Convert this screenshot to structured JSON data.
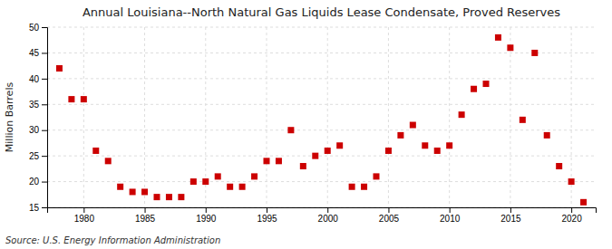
{
  "chart_data": {
    "type": "scatter",
    "title": "Annual Louisiana--North Natural Gas Liquids Lease Condensate, Proved Reserves",
    "ylabel": "Million Barrels",
    "source": "Source: U.S. Energy Information Administration",
    "x": [
      1978,
      1979,
      1980,
      1981,
      1982,
      1983,
      1984,
      1985,
      1986,
      1987,
      1988,
      1989,
      1990,
      1991,
      1992,
      1993,
      1994,
      1995,
      1996,
      1997,
      1998,
      1999,
      2000,
      2001,
      2002,
      2003,
      2004,
      2005,
      2006,
      2007,
      2008,
      2009,
      2010,
      2011,
      2012,
      2013,
      2014,
      2015,
      2016,
      2017,
      2018,
      2019,
      2020,
      2021
    ],
    "values": [
      42,
      36,
      36,
      26,
      24,
      19,
      18,
      18,
      17,
      17,
      17,
      20,
      20,
      21,
      19,
      19,
      21,
      24,
      24,
      30,
      23,
      25,
      26,
      27,
      19,
      19,
      21,
      26,
      29,
      31,
      27,
      26,
      27,
      33,
      38,
      39,
      48,
      46,
      32,
      45,
      29,
      23,
      20,
      16
    ],
    "color": "#cc0000",
    "marker": "square",
    "xlim": [
      1977,
      2022
    ],
    "xticks": [
      1980,
      1985,
      1990,
      1995,
      2000,
      2005,
      2010,
      2015,
      2020
    ],
    "ylim": [
      15,
      50
    ],
    "yticks": [
      15,
      20,
      25,
      30,
      35,
      40,
      45,
      50
    ],
    "grid": true
  }
}
